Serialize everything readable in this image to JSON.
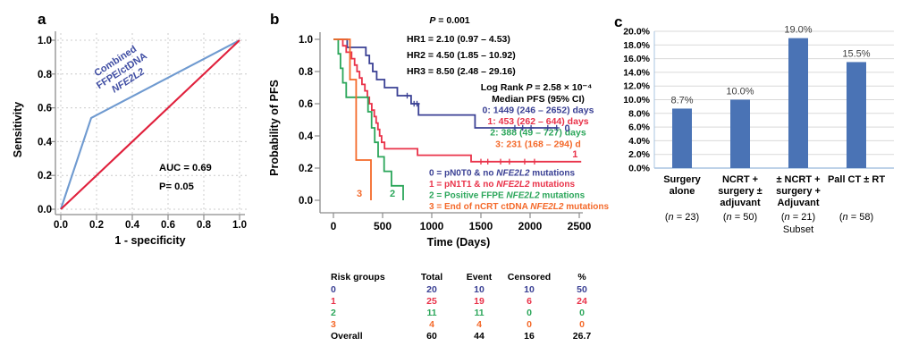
{
  "figure": {
    "panel_a_label": "a",
    "panel_b_label": "b",
    "panel_c_label": "c"
  },
  "colors": {
    "group0": "#3a4094",
    "group1": "#e93249",
    "group2": "#2ba65a",
    "group3": "#f4692a",
    "overall": "#000000",
    "roc_curve": "#6f9ad0",
    "roc_reference": "#e0203c",
    "roc_label": "#3f4da3",
    "bar": "#4a73b5",
    "axis": "#8c8c8c",
    "grid": "#cccccc",
    "bar_axis": "#a9c4e0",
    "bar_grid": "#d9d9d9",
    "value_label": "#3d3d3d"
  },
  "chart_data": [
    {
      "id": "roc",
      "type": "line",
      "xlabel": "1 - specificity",
      "ylabel": "Sensitivity",
      "xlim": [
        0,
        1
      ],
      "ylim": [
        0,
        1
      ],
      "grid": true,
      "xtick_labels": [
        "0.0",
        "0.2",
        "0.4",
        "0.6",
        "0.8",
        "1.0"
      ],
      "ytick_labels": [
        "0.0",
        "0.2",
        "0.4",
        "0.6",
        "0.8",
        "1.0"
      ],
      "series": [
        {
          "name": "combined-ffpe-ctdna-nfe2l2-roc",
          "color_key": "roc_curve",
          "points": [
            [
              0,
              0
            ],
            [
              0.17,
              0.54
            ],
            [
              1,
              1
            ]
          ]
        },
        {
          "name": "chance-reference",
          "color_key": "roc_reference",
          "points": [
            [
              0,
              0
            ],
            [
              1,
              1
            ]
          ]
        }
      ],
      "curve_label_lines": [
        [
          {
            "t": "Combined"
          }
        ],
        [
          {
            "t": "FFPE/ctDNA"
          }
        ],
        [
          {
            "t": "NFE2L2",
            "i": true
          }
        ]
      ],
      "annotations": [
        "AUC = 0.69",
        "P= 0.05"
      ]
    },
    {
      "id": "km",
      "type": "step",
      "xlabel": "Time (Days)",
      "ylabel": "Probability of PFS",
      "xlim": [
        0,
        2500
      ],
      "ylim": [
        0,
        1
      ],
      "xtick_labels": [
        "0",
        "500",
        "1000",
        "1500",
        "2000",
        "2500"
      ],
      "ytick_labels": [
        "0.0",
        "0.2",
        "0.4",
        "0.6",
        "0.8",
        "1.0"
      ],
      "pvalue_segments": [
        {
          "t": "P",
          "i": true
        },
        {
          "t": " = 0.001"
        }
      ],
      "hr_lines": [
        "HR1 = 2.10 (0.97 – 4.53)",
        "HR2 = 4.50 (1.85 – 10.92)",
        "HR3 = 8.50 (2.48 – 29.16)"
      ],
      "logrank_segments": [
        {
          "t": "Log Rank "
        },
        {
          "t": "P",
          "i": true
        },
        {
          "t": " = 2.58 × 10⁻⁴"
        }
      ],
      "median_header": "Median PFS (95% CI)",
      "median_lines": [
        {
          "text": "0: 1449 (246 – 2652) days",
          "color_key": "group0"
        },
        {
          "text": "1: 453 (262 – 644) days",
          "color_key": "group1"
        },
        {
          "text": "2: 388 (49 – 727) days",
          "color_key": "group2"
        },
        {
          "text": "3: 231 (168 – 294) d",
          "color_key": "group3"
        }
      ],
      "series": [
        {
          "name": "group0-pN0T0-no-NFE2L2",
          "color_key": "group0",
          "points": [
            [
              0,
              1
            ],
            [
              140,
              1
            ],
            [
              140,
              0.95
            ],
            [
              330,
              0.95
            ],
            [
              330,
              0.9
            ],
            [
              365,
              0.9
            ],
            [
              365,
              0.85
            ],
            [
              400,
              0.85
            ],
            [
              400,
              0.8
            ],
            [
              440,
              0.8
            ],
            [
              440,
              0.75
            ],
            [
              520,
              0.75
            ],
            [
              520,
              0.7
            ],
            [
              650,
              0.7
            ],
            [
              650,
              0.65
            ],
            [
              790,
              0.65
            ],
            [
              790,
              0.6
            ],
            [
              865,
              0.6
            ],
            [
              865,
              0.53
            ],
            [
              1440,
              0.53
            ],
            [
              1440,
              0.45
            ],
            [
              2280,
              0.45
            ]
          ],
          "censors": [
            [
              750,
              0.65
            ],
            [
              820,
              0.6
            ],
            [
              850,
              0.6
            ],
            [
              1845,
              0.45
            ],
            [
              1925,
              0.45
            ],
            [
              2010,
              0.45
            ],
            [
              2180,
              0.45
            ],
            [
              2270,
              0.45
            ]
          ],
          "end_label": {
            "text": "0",
            "day": 2350,
            "prob": 0.45,
            "anchor": "start",
            "dy": 4
          }
        },
        {
          "name": "group1-pN1T1-no-NFE2L2",
          "color_key": "group1",
          "points": [
            [
              0,
              1
            ],
            [
              95,
              1
            ],
            [
              95,
              0.96
            ],
            [
              130,
              0.96
            ],
            [
              130,
              0.92
            ],
            [
              185,
              0.92
            ],
            [
              185,
              0.88
            ],
            [
              215,
              0.88
            ],
            [
              215,
              0.84
            ],
            [
              240,
              0.84
            ],
            [
              240,
              0.8
            ],
            [
              265,
              0.8
            ],
            [
              265,
              0.76
            ],
            [
              290,
              0.76
            ],
            [
              290,
              0.72
            ],
            [
              320,
              0.72
            ],
            [
              320,
              0.68
            ],
            [
              345,
              0.68
            ],
            [
              345,
              0.64
            ],
            [
              365,
              0.64
            ],
            [
              365,
              0.6
            ],
            [
              390,
              0.6
            ],
            [
              390,
              0.56
            ],
            [
              415,
              0.56
            ],
            [
              415,
              0.52
            ],
            [
              435,
              0.52
            ],
            [
              435,
              0.48
            ],
            [
              453,
              0.48
            ],
            [
              453,
              0.44
            ],
            [
              470,
              0.44
            ],
            [
              470,
              0.4
            ],
            [
              490,
              0.4
            ],
            [
              490,
              0.36
            ],
            [
              520,
              0.36
            ],
            [
              520,
              0.32
            ],
            [
              855,
              0.32
            ],
            [
              855,
              0.28
            ],
            [
              1400,
              0.28
            ],
            [
              1400,
              0.24
            ],
            [
              2520,
              0.24
            ]
          ],
          "censors": [
            [
              1500,
              0.24
            ],
            [
              1570,
              0.24
            ],
            [
              1700,
              0.24
            ],
            [
              1790,
              0.24
            ],
            [
              1945,
              0.24
            ],
            [
              2045,
              0.24
            ]
          ],
          "end_label": {
            "text": "1",
            "day": 2430,
            "prob": 0.29,
            "anchor": "start",
            "dy": 4
          }
        },
        {
          "name": "group2-positive-ffpe-NFE2L2",
          "color_key": "group2",
          "points": [
            [
              0,
              1
            ],
            [
              49,
              1
            ],
            [
              49,
              0.91
            ],
            [
              72,
              0.91
            ],
            [
              72,
              0.82
            ],
            [
              95,
              0.82
            ],
            [
              95,
              0.73
            ],
            [
              130,
              0.73
            ],
            [
              130,
              0.64
            ],
            [
              352,
              0.64
            ],
            [
              352,
              0.55
            ],
            [
              388,
              0.55
            ],
            [
              388,
              0.45
            ],
            [
              420,
              0.45
            ],
            [
              420,
              0.36
            ],
            [
              455,
              0.36
            ],
            [
              455,
              0.27
            ],
            [
              515,
              0.27
            ],
            [
              515,
              0.18
            ],
            [
              590,
              0.18
            ],
            [
              590,
              0.09
            ],
            [
              709,
              0.09
            ],
            [
              709,
              0
            ]
          ],
          "censors": [],
          "end_label": {
            "text": "2",
            "day": 600,
            "prob": 0.05,
            "anchor": "middle",
            "dy": 5
          }
        },
        {
          "name": "group3-end-of-nCRT-ctDNA-NFE2L2",
          "color_key": "group3",
          "points": [
            [
              0,
              1
            ],
            [
              168,
              1
            ],
            [
              168,
              0.75
            ],
            [
              231,
              0.75
            ],
            [
              231,
              0.25
            ],
            [
              382,
              0.25
            ],
            [
              382,
              0
            ]
          ],
          "censors": [],
          "end_label": {
            "text": "3",
            "day": 264,
            "prob": 0.05,
            "anchor": "middle",
            "dy": 5
          }
        }
      ],
      "legend": [
        {
          "color_key": "group0",
          "segments": [
            {
              "t": "0 = pN0T0 & no "
            },
            {
              "t": "NFE2L2",
              "i": true
            },
            {
              "t": " mutations"
            }
          ]
        },
        {
          "color_key": "group1",
          "segments": [
            {
              "t": "1 = pN1T1 & no "
            },
            {
              "t": "NFE2L2",
              "i": true
            },
            {
              "t": " mutations"
            }
          ]
        },
        {
          "color_key": "group2",
          "segments": [
            {
              "t": "2 = Positive FFPE "
            },
            {
              "t": "NFE2L2",
              "i": true
            },
            {
              "t": " mutations"
            }
          ]
        },
        {
          "color_key": "group3",
          "segments": [
            {
              "t": "3 = End of nCRT ctDNA "
            },
            {
              "t": "NFE2L2",
              "i": true
            },
            {
              "t": " mutations"
            }
          ]
        }
      ]
    },
    {
      "id": "outcome-bars",
      "type": "bar",
      "ylim": [
        0,
        20
      ],
      "ytick_labels": [
        "0.0%",
        "2.0%",
        "4.0%",
        "6.0%",
        "8.0%",
        "10.0%",
        "12.0%",
        "14.0%",
        "16.0%",
        "18.0%",
        "20.0%"
      ],
      "values": [
        8.7,
        10.0,
        19.0,
        15.5
      ],
      "value_labels": [
        "8.7%",
        "10.0%",
        "19.0%",
        "15.5%"
      ],
      "categories": [
        {
          "lines": [
            "Surgery",
            "alone"
          ],
          "n_segments": [
            {
              "t": "("
            },
            {
              "t": "n",
              "i": true
            },
            {
              "t": " = 23)"
            }
          ]
        },
        {
          "lines": [
            "NCRT +",
            "surgery ±",
            "adjuvant"
          ],
          "n_segments": [
            {
              "t": "("
            },
            {
              "t": "n",
              "i": true
            },
            {
              "t": " = 50)"
            }
          ]
        },
        {
          "lines": [
            "± NCRT +",
            "surgery +",
            "Adjuvant"
          ],
          "n_segments": [
            {
              "t": "("
            },
            {
              "t": "n",
              "i": true
            },
            {
              "t": " = 21)"
            }
          ],
          "note": "Subset"
        },
        {
          "lines": [
            "Pall CT ± RT"
          ],
          "n_segments": [
            {
              "t": "("
            },
            {
              "t": "n",
              "i": true
            },
            {
              "t": " = 58)"
            }
          ]
        }
      ]
    }
  ],
  "risk_table": {
    "headers": [
      "Risk groups",
      "Total",
      "Event",
      "Censored",
      "%"
    ],
    "rows": [
      {
        "label": "0",
        "color_key": "group0",
        "values": [
          "20",
          "10",
          "10",
          "50"
        ]
      },
      {
        "label": "1",
        "color_key": "group1",
        "values": [
          "25",
          "19",
          "6",
          "24"
        ]
      },
      {
        "label": "2",
        "color_key": "group2",
        "values": [
          "11",
          "11",
          "0",
          "0"
        ]
      },
      {
        "label": "3",
        "color_key": "group3",
        "values": [
          "4",
          "4",
          "0",
          "0"
        ]
      },
      {
        "label": "Overall",
        "color_key": "overall",
        "values": [
          "60",
          "44",
          "16",
          "26.7"
        ]
      }
    ]
  }
}
